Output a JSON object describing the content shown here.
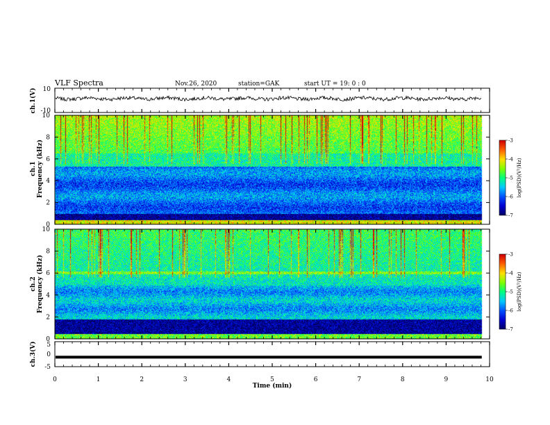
{
  "header": {
    "title": "VLF Spectra",
    "date": "Nov.26, 2020",
    "station": "station=GAK",
    "start": "start  UT =   19: 0  : 0"
  },
  "chart_data": [
    {
      "type": "line",
      "id": "ch1-waveform",
      "ylabel": "ch.1(V)",
      "ylim": [
        -10,
        10
      ],
      "yticks": [
        "10",
        "-10"
      ],
      "xlim": [
        0,
        10
      ],
      "approx_level": 1.5,
      "color": "#000000"
    },
    {
      "type": "heatmap",
      "id": "ch1-spectrogram",
      "ylabel_lines": [
        "ch.1",
        "Frequency  (kHz)"
      ],
      "ylim": [
        0,
        10
      ],
      "yticks": [
        "0",
        "2",
        "4",
        "6",
        "8",
        "10"
      ],
      "xlim": [
        0,
        10
      ],
      "colorbar": {
        "label": "log(PSD)(V²/Hz)",
        "range": [
          -7,
          -3
        ],
        "ticks": [
          "-3",
          "-4",
          "-5",
          "-6",
          "-7"
        ]
      }
    },
    {
      "type": "heatmap",
      "id": "ch2-spectrogram",
      "ylabel_lines": [
        "ch.2",
        "Frequency  (kHz)"
      ],
      "ylim": [
        0,
        10
      ],
      "yticks": [
        "0",
        "2",
        "4",
        "6",
        "8",
        "10"
      ],
      "xlim": [
        0,
        10
      ],
      "colorbar": {
        "label": "log(PSD)(V²/Hz)",
        "range": [
          -7,
          -3
        ],
        "ticks": [
          "-3",
          "-4",
          "-5",
          "-6",
          "-7"
        ]
      }
    },
    {
      "type": "line",
      "id": "ch3-waveform",
      "ylabel": "ch.3(V)",
      "ylim": [
        -5,
        5
      ],
      "yticks": [
        "5",
        "0",
        "-5"
      ],
      "xlim": [
        0,
        10
      ],
      "xlabel": "Time  (min)",
      "xticks": [
        "0",
        "1",
        "2",
        "3",
        "4",
        "5",
        "6",
        "7",
        "8",
        "9",
        "10"
      ],
      "level": -1.2,
      "color": "#000000"
    }
  ],
  "colormap": [
    "#000060",
    "#0000d0",
    "#0050ff",
    "#00c8ff",
    "#00ff80",
    "#80ff00",
    "#ffe000",
    "#ff6000",
    "#d00000"
  ]
}
